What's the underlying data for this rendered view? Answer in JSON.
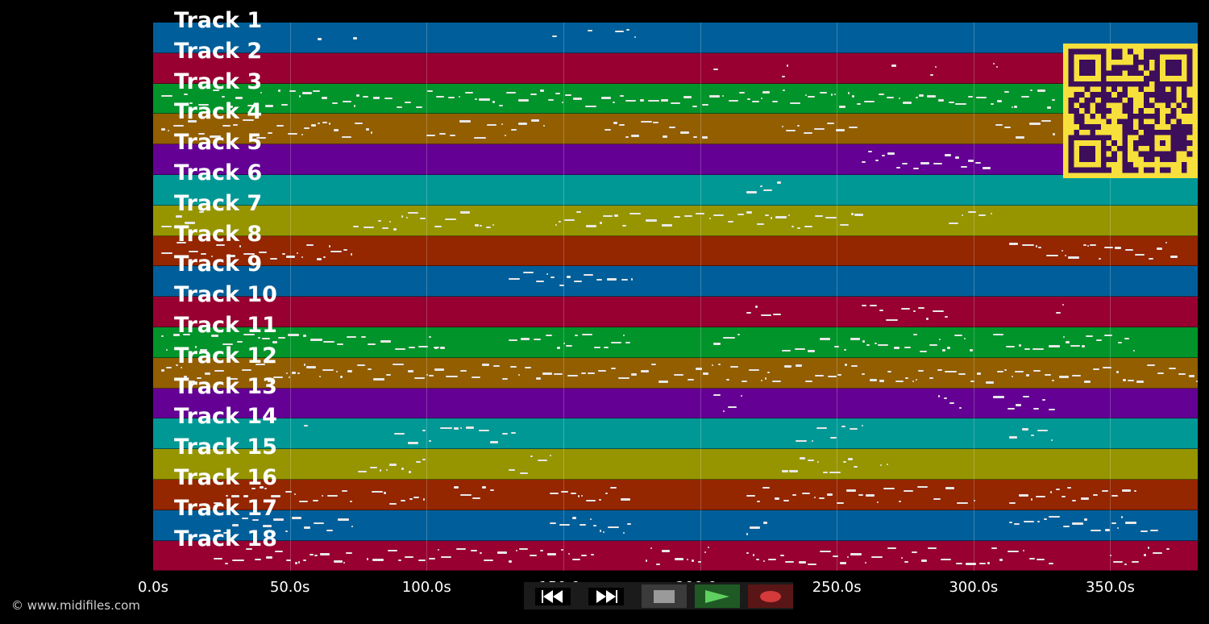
{
  "tracks": [
    {
      "label": "Track 1",
      "color": "#005f9a"
    },
    {
      "label": "Track 2",
      "color": "#970031"
    },
    {
      "label": "Track 3",
      "color": "#00942a"
    },
    {
      "label": "Track 4",
      "color": "#935e00"
    },
    {
      "label": "Track 5",
      "color": "#640094"
    },
    {
      "label": "Track 6",
      "color": "#009895"
    },
    {
      "label": "Track 7",
      "color": "#969500"
    },
    {
      "label": "Track 8",
      "color": "#942600"
    },
    {
      "label": "Track 9",
      "color": "#005f9a"
    },
    {
      "label": "Track 10",
      "color": "#970031"
    },
    {
      "label": "Track 11",
      "color": "#00942a"
    },
    {
      "label": "Track 12",
      "color": "#935e00"
    },
    {
      "label": "Track 13",
      "color": "#640094"
    },
    {
      "label": "Track 14",
      "color": "#009895"
    },
    {
      "label": "Track 15",
      "color": "#969500"
    },
    {
      "label": "Track 16",
      "color": "#942600"
    },
    {
      "label": "Track 17",
      "color": "#005f9a"
    },
    {
      "label": "Track 18",
      "color": "#970031"
    }
  ],
  "timeline": {
    "max_seconds": 382,
    "ticks": [
      {
        "label": "0.0s",
        "value": 0
      },
      {
        "label": "50.0s",
        "value": 50
      },
      {
        "label": "100.0s",
        "value": 100
      },
      {
        "label": "150.0s",
        "value": 150
      },
      {
        "label": "200.0s",
        "value": 200
      },
      {
        "label": "250.0s",
        "value": 250
      },
      {
        "label": "300.0s",
        "value": 300
      },
      {
        "label": "350.0s",
        "value": 350
      }
    ]
  },
  "track_activity": [
    [
      [
        60,
        62
      ],
      [
        73,
        75
      ],
      [
        146,
        148
      ],
      [
        159,
        161
      ],
      [
        169,
        177
      ]
    ],
    [
      [
        205,
        207
      ],
      [
        230,
        232
      ],
      [
        270,
        272
      ],
      [
        284,
        286
      ],
      [
        307,
        309
      ]
    ],
    [
      [
        3,
        330
      ]
    ],
    [
      [
        3,
        80
      ],
      [
        100,
        145
      ],
      [
        165,
        203
      ],
      [
        230,
        258
      ],
      [
        308,
        330
      ]
    ],
    [
      [
        259,
        307
      ]
    ],
    [
      [
        217,
        230
      ]
    ],
    [
      [
        3,
        20
      ],
      [
        73,
        100
      ],
      [
        103,
        125
      ],
      [
        147,
        260
      ],
      [
        291,
        307
      ]
    ],
    [
      [
        3,
        73
      ],
      [
        313,
        375
      ]
    ],
    [
      [
        130,
        175
      ]
    ],
    [
      [
        217,
        230
      ],
      [
        259,
        291
      ],
      [
        330,
        333
      ]
    ],
    [
      [
        3,
        105
      ],
      [
        103,
        107
      ],
      [
        130,
        175
      ],
      [
        205,
        215
      ],
      [
        230,
        300
      ],
      [
        307,
        360
      ]
    ],
    [
      [
        3,
        382
      ]
    ],
    [
      [
        205,
        215
      ],
      [
        287,
        296
      ],
      [
        307,
        330
      ]
    ],
    [
      [
        55,
        57
      ],
      [
        88,
        102
      ],
      [
        105,
        133
      ],
      [
        235,
        260
      ],
      [
        313,
        330
      ]
    ],
    [
      [
        75,
        100
      ],
      [
        130,
        145
      ],
      [
        230,
        258
      ],
      [
        266,
        269
      ]
    ],
    [
      [
        22,
        73
      ],
      [
        80,
        100
      ],
      [
        110,
        125
      ],
      [
        145,
        175
      ],
      [
        217,
        300
      ],
      [
        313,
        360
      ]
    ],
    [
      [
        22,
        73
      ],
      [
        145,
        175
      ],
      [
        217,
        225
      ],
      [
        313,
        368
      ]
    ],
    [
      [
        22,
        73
      ],
      [
        78,
        162
      ],
      [
        180,
        203
      ],
      [
        217,
        330
      ],
      [
        350,
        372
      ]
    ]
  ],
  "transport": {
    "buttons": [
      {
        "name": "rewind-button",
        "icon": "rewind-icon",
        "color": "#000000"
      },
      {
        "name": "fast-forward-button",
        "icon": "fast-forward-icon",
        "color": "#000000"
      },
      {
        "name": "stop-button",
        "icon": "stop-icon",
        "color": "#3b3b3b"
      },
      {
        "name": "play-button",
        "icon": "play-icon",
        "color": "#1f5a24"
      },
      {
        "name": "record-button",
        "icon": "record-icon",
        "color": "#5a1616"
      }
    ]
  },
  "qr": {
    "icon": "qr-code-icon",
    "fg": "#3d0f5a",
    "bg": "#f7e03b"
  },
  "copyright": "© www.midifiles.com"
}
